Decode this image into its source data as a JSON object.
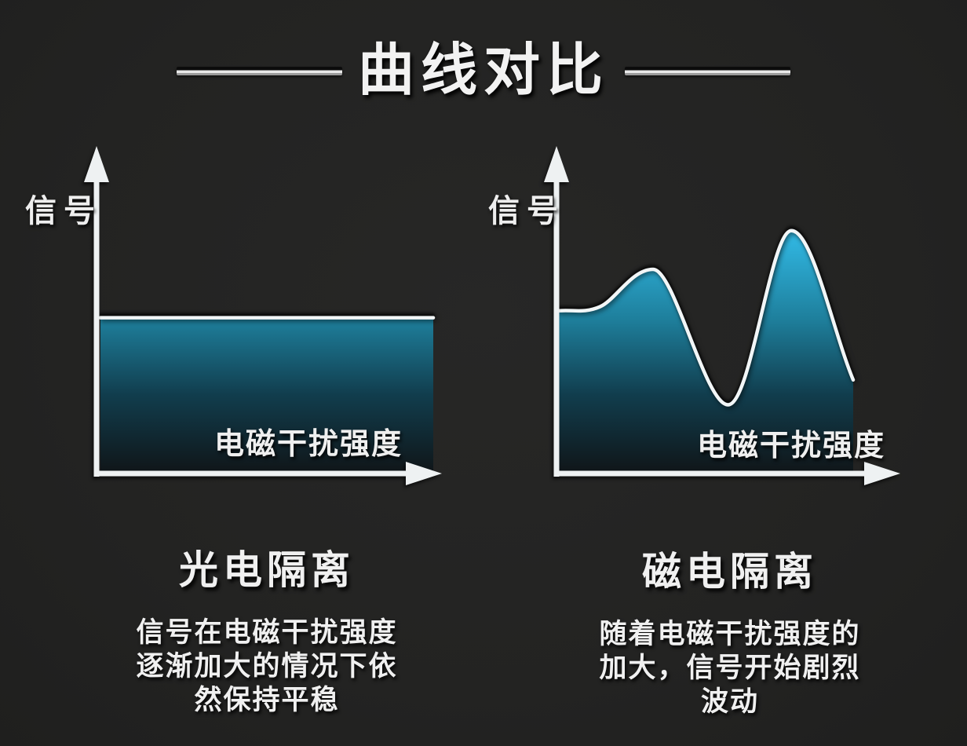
{
  "page": {
    "background": "#232322",
    "accent_cyan": "#2fb2dc",
    "line_color": "#f2f6f7"
  },
  "header": {
    "title": "曲线对比"
  },
  "charts": [
    {
      "ylabel": "信号",
      "xlabel": "电磁干扰强度",
      "caption_title": "光电隔离",
      "caption_lines": [
        "信号在电磁干扰强度",
        "逐渐加大的情况下依",
        "然保持平稳"
      ]
    },
    {
      "ylabel": "信号",
      "xlabel": "电磁干扰强度",
      "caption_title": "磁电隔离",
      "caption_lines": [
        "随着电磁干扰强度的",
        "加大，信号开始剧烈",
        "波动"
      ]
    }
  ],
  "chart_data": [
    {
      "type": "area",
      "title": "光电隔离",
      "xlabel": "电磁干扰强度",
      "ylabel": "信号",
      "xlim": [
        0,
        1
      ],
      "ylim": [
        0,
        1
      ],
      "x": [
        0,
        0.5,
        1
      ],
      "y": [
        0.555,
        0.555,
        0.555
      ],
      "stroke": "#f2f6f7",
      "fill_gradient": [
        "#3fc6ec",
        "#2fb2dc",
        "#1e7f9c",
        "#113d4d",
        "#101518"
      ],
      "axis_color": "#eef1f2",
      "grid": false,
      "legend": false
    },
    {
      "type": "area",
      "title": "磁电隔离",
      "xlabel": "电磁干扰强度",
      "ylabel": "信号",
      "xlim": [
        0,
        1
      ],
      "ylim": [
        0,
        1
      ],
      "x": [
        0,
        0.14,
        0.32,
        0.575,
        0.79,
        1
      ],
      "y": [
        0.58,
        0.595,
        0.73,
        0.24,
        0.87,
        0.33
      ],
      "stroke": "#f2f6f7",
      "fill_gradient": [
        "#3fc6ec",
        "#2fb2dc",
        "#1e7f9c",
        "#113d4d",
        "#101518"
      ],
      "axis_color": "#eef1f2",
      "grid": false,
      "legend": false
    }
  ]
}
